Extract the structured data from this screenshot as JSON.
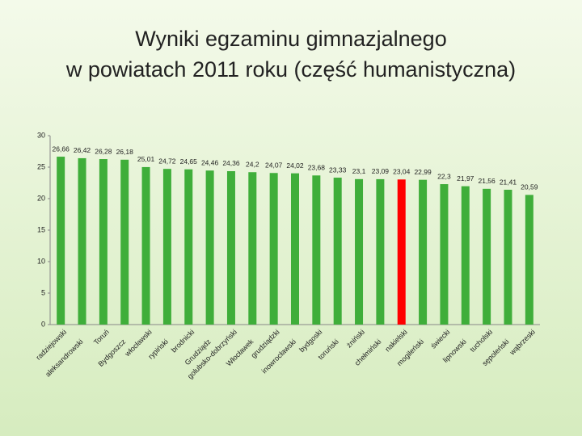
{
  "chart_data": {
    "type": "bar",
    "title": [
      "Wyniki egzaminu gimnazjalnego",
      "w powiatach  2011 roku (część humanistyczna)"
    ],
    "categories": [
      "radziejowski",
      "aleksandrowski",
      "Toruń",
      "Bydgoszcz",
      "włocławski",
      "rypiński",
      "brodnicki",
      "Grudziądz",
      "golubsko-dobrzyński",
      "Włocławek",
      "grudziądzki",
      "inowrocławski",
      "bydgoski",
      "toruński",
      "żniński",
      "chełmiński",
      "nakielski",
      "mogileński",
      "świecki",
      "lipnowski",
      "tucholski",
      "sępoleński",
      "wąbrzeski"
    ],
    "values": [
      26.66,
      26.42,
      26.28,
      26.18,
      25.01,
      24.72,
      24.65,
      24.46,
      24.36,
      24.2,
      24.07,
      24.02,
      23.68,
      23.33,
      23.1,
      23.09,
      23.04,
      22.99,
      22.3,
      21.97,
      21.56,
      21.41,
      20.59
    ],
    "value_labels": [
      "26,66",
      "26,42",
      "26,28",
      "26,18",
      "25,01",
      "24,72",
      "24,65",
      "24,46",
      "24,36",
      "24,2",
      "24,07",
      "24,02",
      "23,68",
      "23,33",
      "23,1",
      "23,09",
      "23,04",
      "22,99",
      "22,3",
      "21,97",
      "21,56",
      "21,41",
      "20,59"
    ],
    "color": "#3fae3a",
    "highlight": {
      "index": 16,
      "color": "#ff0000"
    },
    "ylim": [
      0,
      30
    ],
    "yticks": [
      0,
      5,
      10,
      15,
      20,
      25,
      30
    ],
    "grid": false
  }
}
